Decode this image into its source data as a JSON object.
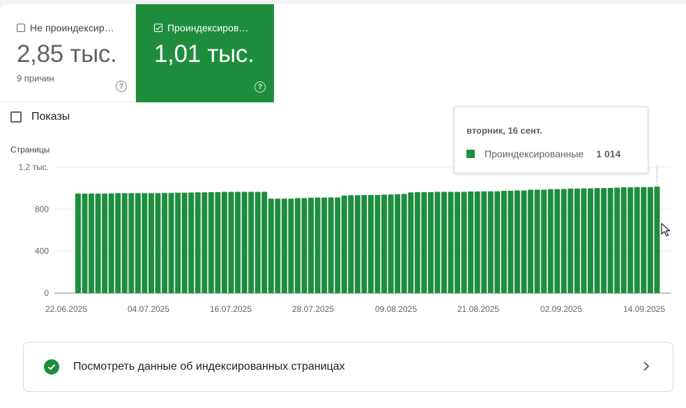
{
  "tiles": {
    "not_indexed": {
      "label": "Не проиндексир…",
      "value": "2,85 тыс.",
      "sub": "9 причин",
      "checked": false
    },
    "indexed": {
      "label": "Проиндексирова…",
      "value": "1,01 тыс.",
      "checked": true
    }
  },
  "impressions": {
    "label": "Показы",
    "checked": false
  },
  "tooltip": {
    "date": "вторник, 16 сент.",
    "series_name": "Проиндексированные",
    "value": "1 014"
  },
  "link_card": {
    "text": "Посмотреть данные об индексированных страницах"
  },
  "colors": {
    "indexed": "#1e8e3e",
    "tile_indexed_bg": "#1e8e3e"
  },
  "chart_data": {
    "type": "bar",
    "ylabel": "Страницы",
    "ylim": [
      0,
      1200
    ],
    "yticks": [
      0,
      400,
      800,
      1200
    ],
    "ytick_labels": [
      "0",
      "400",
      "800",
      "1,2 тыс."
    ],
    "xtick_labels": [
      "22.06.2025",
      "04.07.2025",
      "16.07.2025",
      "28.07.2025",
      "09.08.2025",
      "21.08.2025",
      "02.09.2025",
      "14.09.2025"
    ],
    "x_start": "2025-06-22",
    "x_end": "2025-09-16",
    "grid": true,
    "series": [
      {
        "name": "Проиндексированные",
        "color": "#1e8e3e",
        "values": [
          948,
          948,
          948,
          948,
          948,
          950,
          952,
          952,
          952,
          952,
          952,
          952,
          952,
          954,
          954,
          956,
          956,
          958,
          960,
          960,
          962,
          962,
          965,
          965,
          965,
          965,
          965,
          965,
          965,
          900,
          900,
          900,
          900,
          905,
          905,
          908,
          910,
          910,
          912,
          912,
          930,
          932,
          932,
          935,
          935,
          935,
          938,
          940,
          942,
          945,
          960,
          962,
          962,
          962,
          965,
          965,
          965,
          965,
          965,
          968,
          968,
          970,
          970,
          970,
          975,
          975,
          978,
          978,
          985,
          985,
          985,
          990,
          990,
          992,
          995,
          995,
          998,
          998,
          1000,
          1000,
          1002,
          1004,
          1008,
          1008,
          1010,
          1010,
          1010,
          1014
        ]
      }
    ]
  }
}
